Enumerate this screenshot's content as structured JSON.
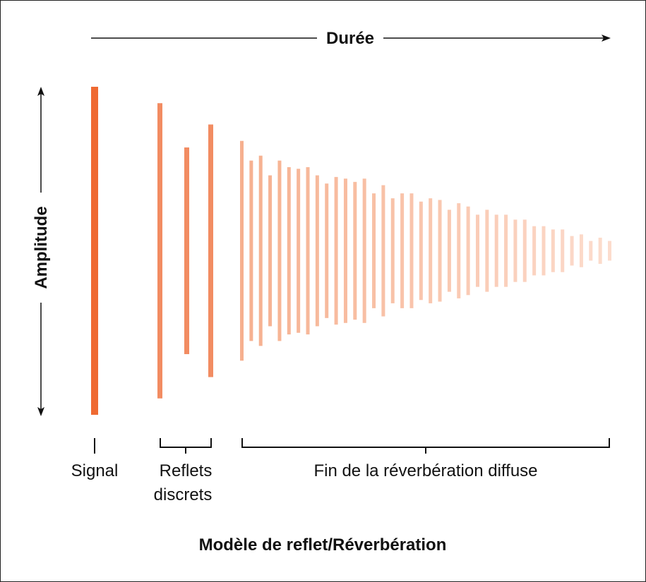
{
  "axes": {
    "duration_label": "Durée",
    "amplitude_label": "Amplitude"
  },
  "groups": {
    "signal_label": "Signal",
    "discrete_label_line1": "Reflets",
    "discrete_label_line2": "discrets",
    "diffuse_label": "Fin de la réverbération diffuse"
  },
  "title": "Modèle de reflet/Réverbération",
  "colors": {
    "signal": "#ef6a32",
    "discrete": "#f28c62",
    "diffuse_start": "#f6b08f",
    "diffuse_end": "#fcdccd",
    "axis": "#111111"
  },
  "chart_data": {
    "type": "bar",
    "signal_amplitude": 1.0,
    "discrete_amplitudes": [
      0.9,
      0.63,
      0.77
    ],
    "diffuse_amplitudes": [
      0.67,
      0.55,
      0.58,
      0.46,
      0.55,
      0.51,
      0.5,
      0.51,
      0.46,
      0.41,
      0.45,
      0.44,
      0.42,
      0.44,
      0.35,
      0.4,
      0.32,
      0.35,
      0.35,
      0.3,
      0.32,
      0.31,
      0.25,
      0.29,
      0.27,
      0.22,
      0.25,
      0.22,
      0.22,
      0.19,
      0.19,
      0.15,
      0.15,
      0.13,
      0.13,
      0.09,
      0.1,
      0.06,
      0.08,
      0.06
    ]
  }
}
